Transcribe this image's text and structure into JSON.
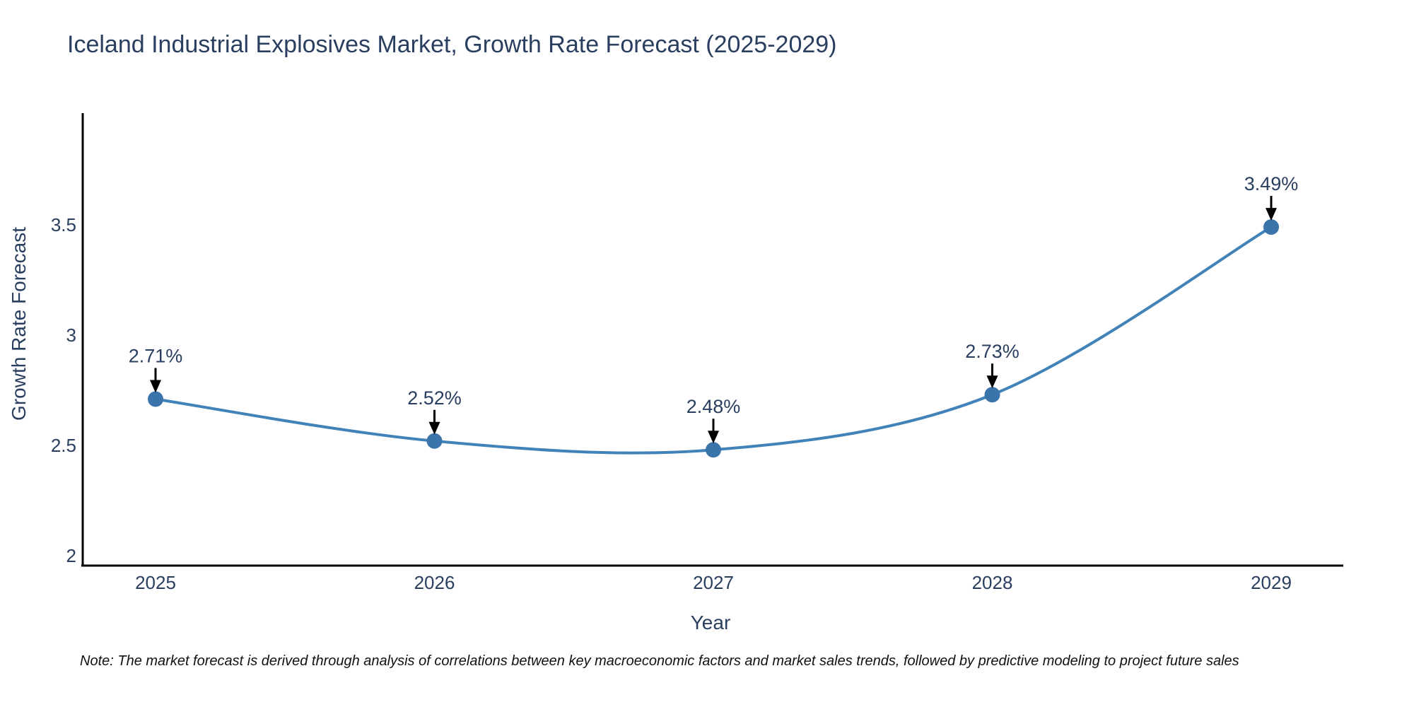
{
  "title": "Iceland Industrial Explosives Market, Growth Rate Forecast (2025-2029)",
  "note": "Note: The market forecast is derived through analysis of correlations between key macroeconomic factors and market sales trends, followed by predictive modeling to project future sales",
  "chart_data": {
    "type": "line",
    "line_shape": "spline",
    "categories": [
      2025,
      2026,
      2027,
      2028,
      2029
    ],
    "series": [
      {
        "name": "Growth Rate Forecast",
        "values": [
          2.71,
          2.52,
          2.48,
          2.73,
          3.49
        ]
      }
    ],
    "point_labels": [
      "2.71%",
      "2.52%",
      "2.48%",
      "2.73%",
      "3.49%"
    ],
    "title": "Iceland Industrial Explosives Market, Growth Rate Forecast (2025-2029)",
    "xlabel": "Year",
    "ylabel": "Growth Rate Forecast",
    "yticks": [
      2,
      2.5,
      3,
      3.5
    ],
    "ylim": [
      1.95,
      4.01
    ],
    "xlim": [
      2024.73,
      2029.26
    ],
    "grid": false,
    "legend_position": "none",
    "colors": {
      "line": "#4183b8",
      "marker": "#3a74ab",
      "arrow": "#000000",
      "axis": "#000000",
      "text": "#2a3f5f",
      "note_text": "#111111",
      "background": "#ffffff"
    }
  }
}
